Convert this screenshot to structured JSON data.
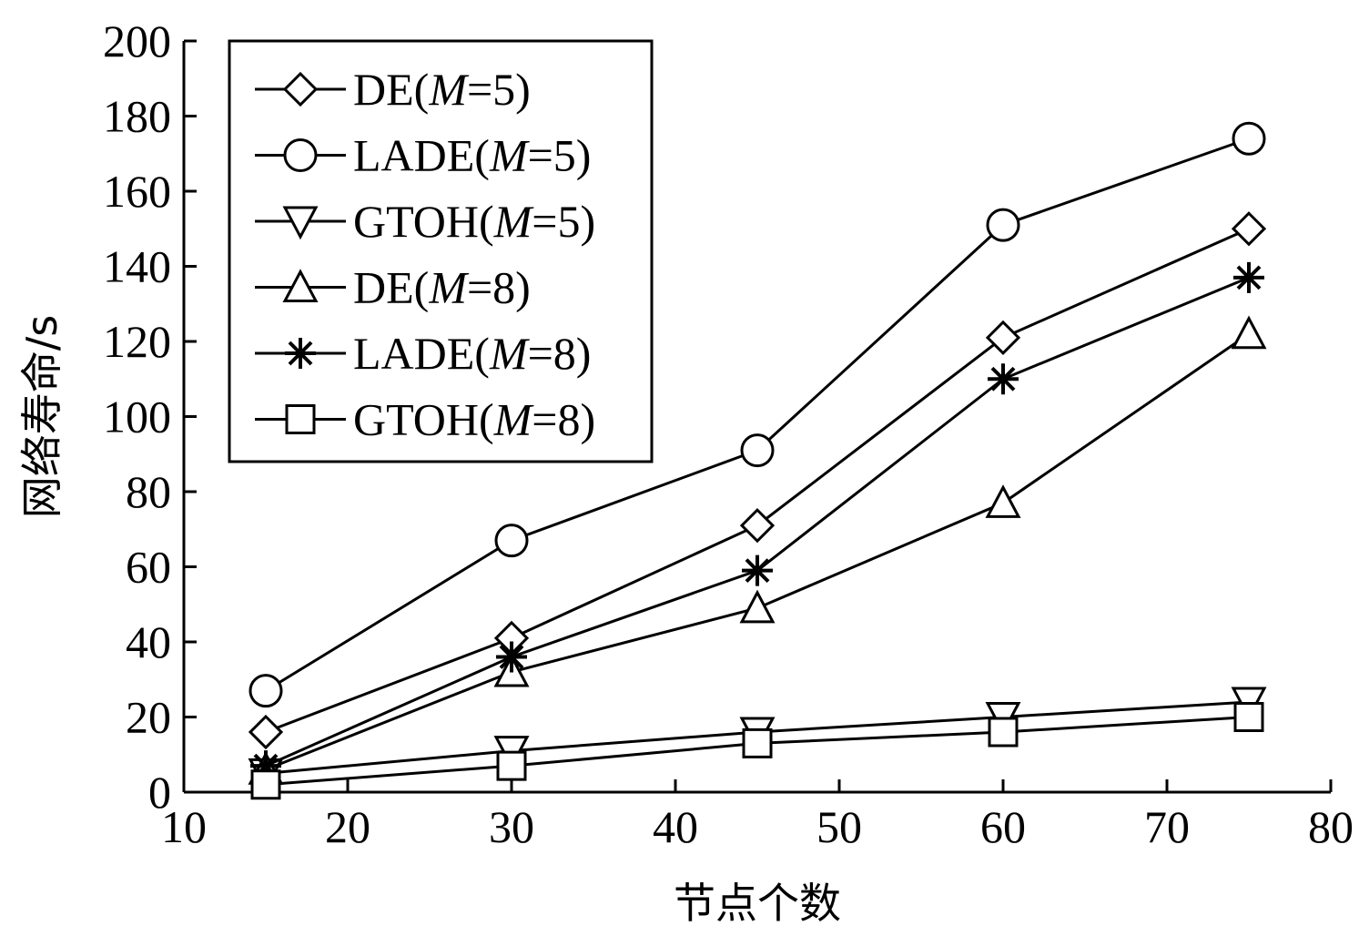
{
  "chart_data": {
    "type": "line",
    "x": [
      15,
      30,
      45,
      60,
      75
    ],
    "xlabel": "节点个数",
    "ylabel": "网络寿命/s",
    "xlim": [
      10,
      80
    ],
    "ylim": [
      0,
      200
    ],
    "xticks": [
      10,
      20,
      30,
      40,
      50,
      60,
      70,
      80
    ],
    "yticks": [
      0,
      20,
      40,
      60,
      80,
      100,
      120,
      140,
      160,
      180,
      200
    ],
    "grid": false,
    "legend_position": "top-left",
    "series": [
      {
        "name_pre": "DE(",
        "name_var": "M",
        "name_post": "=5)",
        "marker": "diamond",
        "values": [
          16,
          41,
          71,
          121,
          150
        ]
      },
      {
        "name_pre": "LADE(",
        "name_var": "M",
        "name_post": "=5)",
        "marker": "circle",
        "values": [
          27,
          67,
          91,
          151,
          174
        ]
      },
      {
        "name_pre": "GTOH(",
        "name_var": "M",
        "name_post": "=5)",
        "marker": "triangle-down",
        "values": [
          5,
          11,
          16,
          20,
          24
        ]
      },
      {
        "name_pre": "DE(",
        "name_var": "M",
        "name_post": "=8)",
        "marker": "triangle-up",
        "values": [
          6,
          32,
          49,
          77,
          122
        ]
      },
      {
        "name_pre": "LADE(",
        "name_var": "M",
        "name_post": "=8)",
        "marker": "asterisk",
        "values": [
          7,
          36,
          59,
          110,
          137
        ]
      },
      {
        "name_pre": "GTOH(",
        "name_var": "M",
        "name_post": "=8)",
        "marker": "square",
        "values": [
          2,
          7,
          13,
          16,
          20
        ]
      }
    ]
  }
}
